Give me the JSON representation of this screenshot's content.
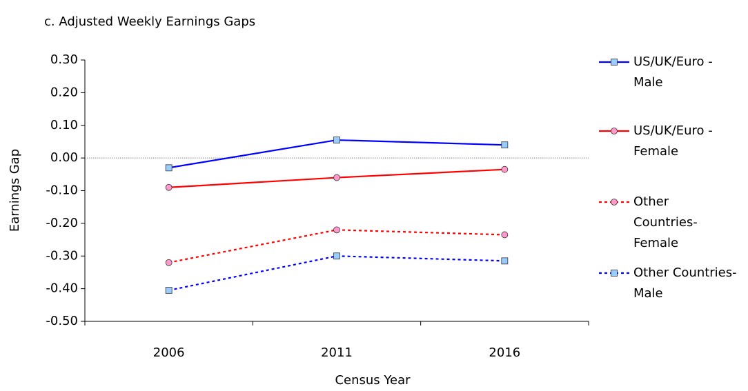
{
  "chart_data": {
    "type": "line",
    "title": "c. Adjusted Weekly Earnings Gaps",
    "x_label": "Census Year",
    "y_label": "Earnings Gap",
    "categories": [
      "2006",
      "2011",
      "2016"
    ],
    "series": [
      {
        "name": "US/UK/Euro - Male",
        "color": "#0000ff",
        "marker_fill": "#99ccff",
        "marker": "square",
        "dashed": false,
        "values": [
          -0.03,
          0.055,
          0.04
        ]
      },
      {
        "name": "US/UK/Euro - Female",
        "color": "#ff0000",
        "marker_fill": "#ff99cc",
        "marker": "circle",
        "dashed": false,
        "values": [
          -0.09,
          -0.06,
          -0.035
        ]
      },
      {
        "name": "Other Countries-Female",
        "color": "#ff0000",
        "marker_fill": "#ff99cc",
        "marker": "circle",
        "dashed": true,
        "values": [
          -0.32,
          -0.22,
          -0.235
        ]
      },
      {
        "name": "Other Countries-Male",
        "color": "#0000ff",
        "marker_fill": "#99ccff",
        "marker": "square",
        "dashed": true,
        "values": [
          -0.405,
          -0.3,
          -0.315
        ]
      }
    ],
    "ylim": [
      -0.5,
      0.3
    ],
    "yticks": [
      {
        "value": -0.5,
        "label": "-0.50"
      },
      {
        "value": -0.4,
        "label": "-0.40"
      },
      {
        "value": -0.3,
        "label": "-0.30"
      },
      {
        "value": -0.2,
        "label": "-0.20"
      },
      {
        "value": -0.1,
        "label": "-0.10"
      },
      {
        "value": 0,
        "label": "0.00"
      },
      {
        "value": 0.1,
        "label": "0.10"
      },
      {
        "value": 0.2,
        "label": "0.20"
      },
      {
        "value": 0.3,
        "label": "0.30"
      }
    ],
    "zero_line": true,
    "legend": "right"
  }
}
